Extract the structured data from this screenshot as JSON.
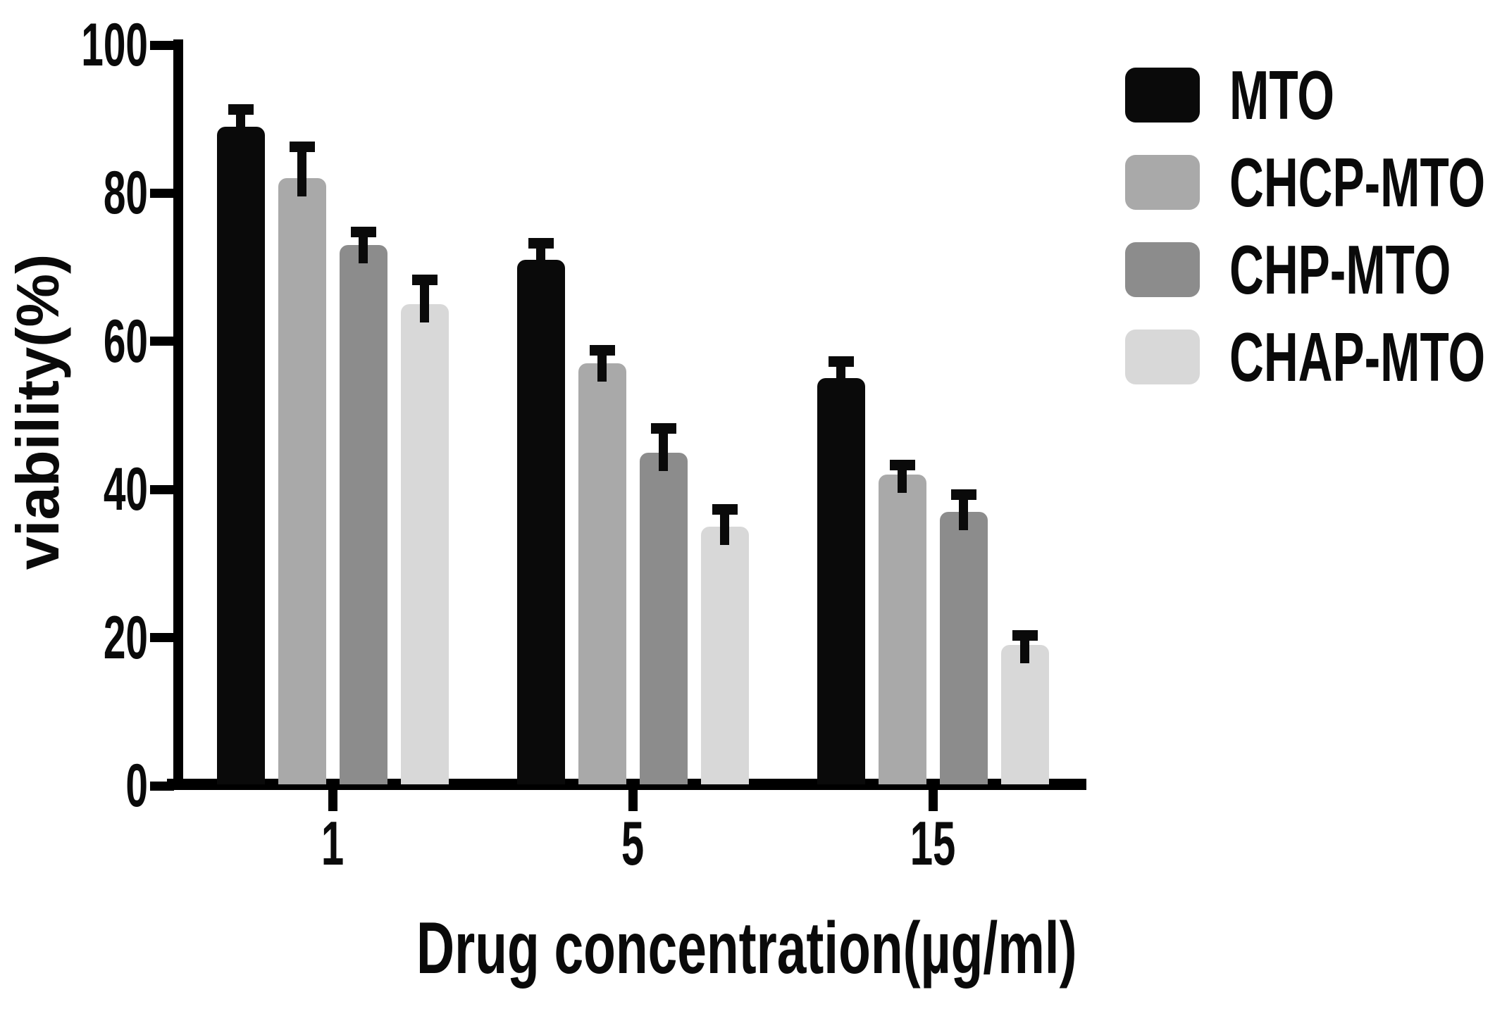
{
  "figure": {
    "background": "#ffffff",
    "text_color": "#0a0a0a"
  },
  "chart_data": {
    "type": "bar",
    "title": "",
    "xlabel": "Drug concentration(µg/ml)",
    "ylabel": "viability(%)",
    "categories": [
      "1",
      "5",
      "15"
    ],
    "series": [
      {
        "name": "MTO",
        "color": "#0a0a0a",
        "values": [
          89,
          71,
          55
        ],
        "errors": [
          3,
          3,
          3
        ]
      },
      {
        "name": "CHCP-MTO",
        "color": "#a9a9a9",
        "values": [
          82,
          57,
          42
        ],
        "errors": [
          5,
          2.5,
          2
        ]
      },
      {
        "name": "CHP-MTO",
        "color": "#8c8c8c",
        "values": [
          73,
          45,
          37
        ],
        "errors": [
          2.5,
          4,
          3
        ]
      },
      {
        "name": "CHAP-MTO",
        "color": "#d8d8d8",
        "values": [
          65,
          35,
          19
        ],
        "errors": [
          4,
          3,
          2
        ]
      }
    ],
    "ylim": [
      0,
      100
    ],
    "yticks": [
      0,
      20,
      40,
      60,
      80,
      100
    ],
    "grid": false,
    "error_bars": true,
    "error_bar_color": "#0a0a0a",
    "axis_color": "#000000",
    "legend_position": "top-right"
  }
}
